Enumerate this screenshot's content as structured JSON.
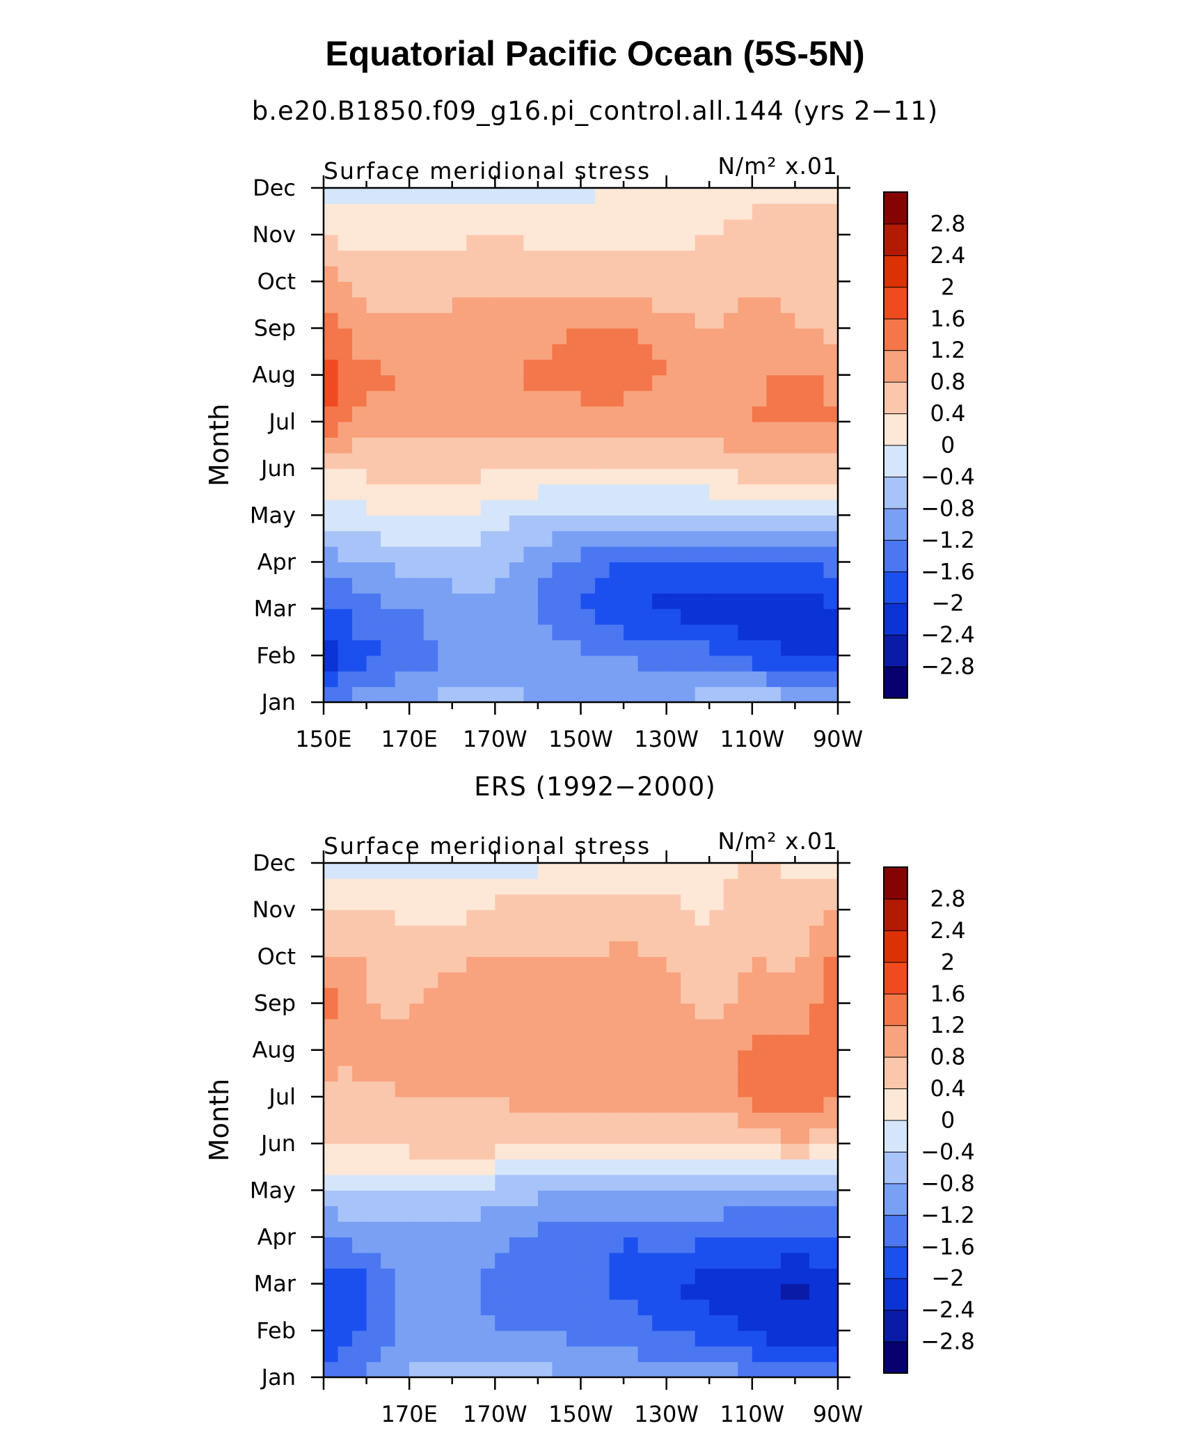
{
  "figure_title": "Equatorial Pacific Ocean (5S-5N)",
  "colormap": {
    "colors": [
      "#08006e",
      "#0a1ba8",
      "#0c33d6",
      "#1c50ee",
      "#4b77f1",
      "#7aa0f4",
      "#a8c3f8",
      "#d5e6fb",
      "#fde7d6",
      "#fbc7ac",
      "#f8a37e",
      "#f3774a",
      "#f04b1f",
      "#dc3005",
      "#b31a02",
      "#850300"
    ],
    "levels": [
      -2.8,
      -2.4,
      -2,
      -1.6,
      -1.2,
      -0.8,
      -0.4,
      0,
      0.4,
      0.8,
      1.2,
      1.6,
      2,
      2.4,
      2.8
    ]
  },
  "chart_data": [
    {
      "type": "heatmap",
      "title": "b.e20.B1850.f09_g16.pi_control.all.144 (yrs 2−11)",
      "left_label": "Surface meridional stress",
      "right_label": "N/m² x.01",
      "ylabel": "Month",
      "x_ticks": [
        "150E",
        "170E",
        "170W",
        "150W",
        "130W",
        "110W",
        "90W"
      ],
      "y_ticks": [
        "Jan",
        "Feb",
        "Mar",
        "Apr",
        "May",
        "Jun",
        "Jul",
        "Aug",
        "Sep",
        "Oct",
        "Nov",
        "Dec"
      ],
      "colorbar_labels": [
        "2.8",
        "2.4",
        "2",
        "1.6",
        "1.2",
        "0.8",
        "0.4",
        "0",
        "−0.4",
        "−0.8",
        "−1.2",
        "−1.6",
        "−2",
        "−2.4",
        "−2.8"
      ],
      "x": [
        150,
        160,
        170,
        180,
        190,
        200,
        210,
        220,
        230,
        240,
        250,
        260,
        270
      ],
      "y": [
        1,
        2,
        3,
        4,
        5,
        6,
        7,
        8,
        9,
        10,
        11,
        12
      ],
      "z": [
        [
          -1.3,
          -0.9,
          -0.8,
          -0.7,
          -0.7,
          -0.8,
          -0.9,
          -1.0,
          -0.9,
          -0.6,
          -0.4,
          -0.7,
          -1.0
        ],
        [
          -2.3,
          -1.7,
          -1.5,
          -1.1,
          -1.0,
          -1.0,
          -1.1,
          -1.2,
          -1.3,
          -1.5,
          -1.8,
          -2.0,
          -2.0
        ],
        [
          -1.8,
          -1.3,
          -1.2,
          -1.0,
          -0.9,
          -1.3,
          -1.6,
          -2.0,
          -2.1,
          -2.3,
          -2.4,
          -2.3,
          -2.0
        ],
        [
          -1.0,
          -0.8,
          -0.7,
          -0.6,
          -0.6,
          -1.0,
          -1.3,
          -1.6,
          -1.7,
          -1.7,
          -1.6,
          -1.5,
          -1.5
        ],
        [
          -0.3,
          -0.1,
          0.1,
          0.1,
          -0.3,
          -0.5,
          -0.5,
          -0.5,
          -0.5,
          -0.5,
          -0.5,
          -0.5,
          -0.3
        ],
        [
          0.5,
          0.5,
          0.6,
          0.6,
          0.5,
          0.5,
          0.4,
          0.4,
          0.4,
          0.5,
          0.6,
          0.7,
          0.7
        ],
        [
          1.5,
          1.0,
          0.9,
          0.9,
          0.9,
          1.0,
          1.0,
          1.0,
          0.9,
          0.9,
          1.2,
          1.3,
          1.2
        ],
        [
          1.9,
          1.3,
          1.2,
          1.2,
          1.1,
          1.3,
          1.4,
          1.4,
          1.2,
          1.0,
          1.1,
          1.3,
          1.1
        ],
        [
          1.4,
          0.9,
          0.9,
          1.0,
          1.0,
          1.0,
          1.3,
          1.3,
          1.0,
          0.8,
          1.1,
          0.8,
          0.7
        ],
        [
          1.0,
          0.6,
          0.5,
          0.6,
          0.7,
          0.7,
          0.6,
          0.6,
          0.5,
          0.5,
          0.7,
          0.6,
          0.5
        ],
        [
          0.3,
          0.3,
          0.3,
          0.3,
          0.4,
          0.3,
          0.3,
          0.3,
          0.3,
          0.4,
          0.5,
          0.5,
          0.5
        ],
        [
          -0.2,
          -0.2,
          -0.1,
          -0.1,
          -0.1,
          -0.1,
          -0.1,
          0.1,
          0.2,
          0.3,
          0.3,
          0.3,
          0.3
        ]
      ]
    },
    {
      "type": "heatmap",
      "title": "ERS (1992−2000)",
      "left_label": "Surface meridional stress",
      "right_label": "N/m² x.01",
      "ylabel": "Month",
      "x_ticks": [
        "170E",
        "170W",
        "150W",
        "130W",
        "110W",
        "90W"
      ],
      "y_ticks": [
        "Jan",
        "Feb",
        "Mar",
        "Apr",
        "May",
        "Jun",
        "Jul",
        "Aug",
        "Sep",
        "Oct",
        "Nov",
        "Dec"
      ],
      "colorbar_labels": [
        "2.8",
        "2.4",
        "2",
        "1.6",
        "1.2",
        "0.8",
        "0.4",
        "0",
        "−0.4",
        "−0.8",
        "−1.2",
        "−1.6",
        "−2",
        "−2.4",
        "−2.8"
      ],
      "x": [
        150,
        160,
        170,
        180,
        190,
        200,
        210,
        220,
        230,
        240,
        250,
        260,
        270
      ],
      "y": [
        1,
        2,
        3,
        4,
        5,
        6,
        7,
        8,
        9,
        10,
        11,
        12
      ],
      "z": [
        [
          -1.4,
          -1.1,
          -0.7,
          -0.7,
          -0.6,
          -0.7,
          -0.8,
          -0.9,
          -0.9,
          -1.0,
          -1.1,
          -1.3,
          -1.5
        ],
        [
          -2.0,
          -1.6,
          -1.0,
          -1.1,
          -1.2,
          -1.2,
          -1.3,
          -1.4,
          -1.6,
          -1.8,
          -2.1,
          -2.3,
          -2.2
        ],
        [
          -2.0,
          -1.7,
          -1.0,
          -1.1,
          -1.3,
          -1.3,
          -1.4,
          -1.7,
          -2.0,
          -2.2,
          -2.3,
          -2.5,
          -2.2
        ],
        [
          -1.3,
          -1.0,
          -0.9,
          -1.0,
          -1.1,
          -1.3,
          -1.5,
          -1.6,
          -1.5,
          -1.5,
          -1.6,
          -1.6,
          -1.6
        ],
        [
          -0.4,
          -0.4,
          -0.5,
          -0.5,
          -0.6,
          -0.7,
          -0.7,
          -0.7,
          -0.7,
          -0.8,
          -0.9,
          -1.0,
          -0.9
        ],
        [
          0.5,
          0.4,
          0.6,
          0.6,
          0.6,
          0.6,
          0.5,
          0.4,
          0.4,
          0.3,
          0.5,
          0.8,
          0.4
        ],
        [
          0.6,
          0.7,
          0.8,
          0.8,
          0.8,
          0.9,
          1.0,
          0.9,
          0.9,
          0.9,
          1.4,
          1.5,
          1.3
        ],
        [
          1.0,
          0.9,
          1.0,
          1.1,
          1.0,
          1.0,
          1.0,
          0.9,
          1.0,
          0.9,
          1.3,
          1.3,
          1.4
        ],
        [
          1.5,
          0.8,
          0.7,
          1.1,
          1.0,
          1.1,
          1.0,
          1.0,
          0.9,
          0.7,
          0.9,
          1.0,
          1.4
        ],
        [
          0.9,
          0.8,
          0.5,
          0.7,
          0.8,
          0.8,
          0.8,
          0.9,
          0.8,
          0.7,
          0.8,
          0.7,
          1.3
        ],
        [
          0.3,
          0.5,
          0.3,
          0.3,
          0.5,
          0.6,
          0.5,
          0.5,
          0.5,
          0.3,
          0.8,
          0.5,
          0.8
        ],
        [
          -0.2,
          -0.4,
          -0.3,
          -0.2,
          -0.2,
          -0.1,
          0.1,
          0.2,
          0.2,
          0.3,
          0.4,
          0.3,
          0.3
        ]
      ]
    }
  ]
}
